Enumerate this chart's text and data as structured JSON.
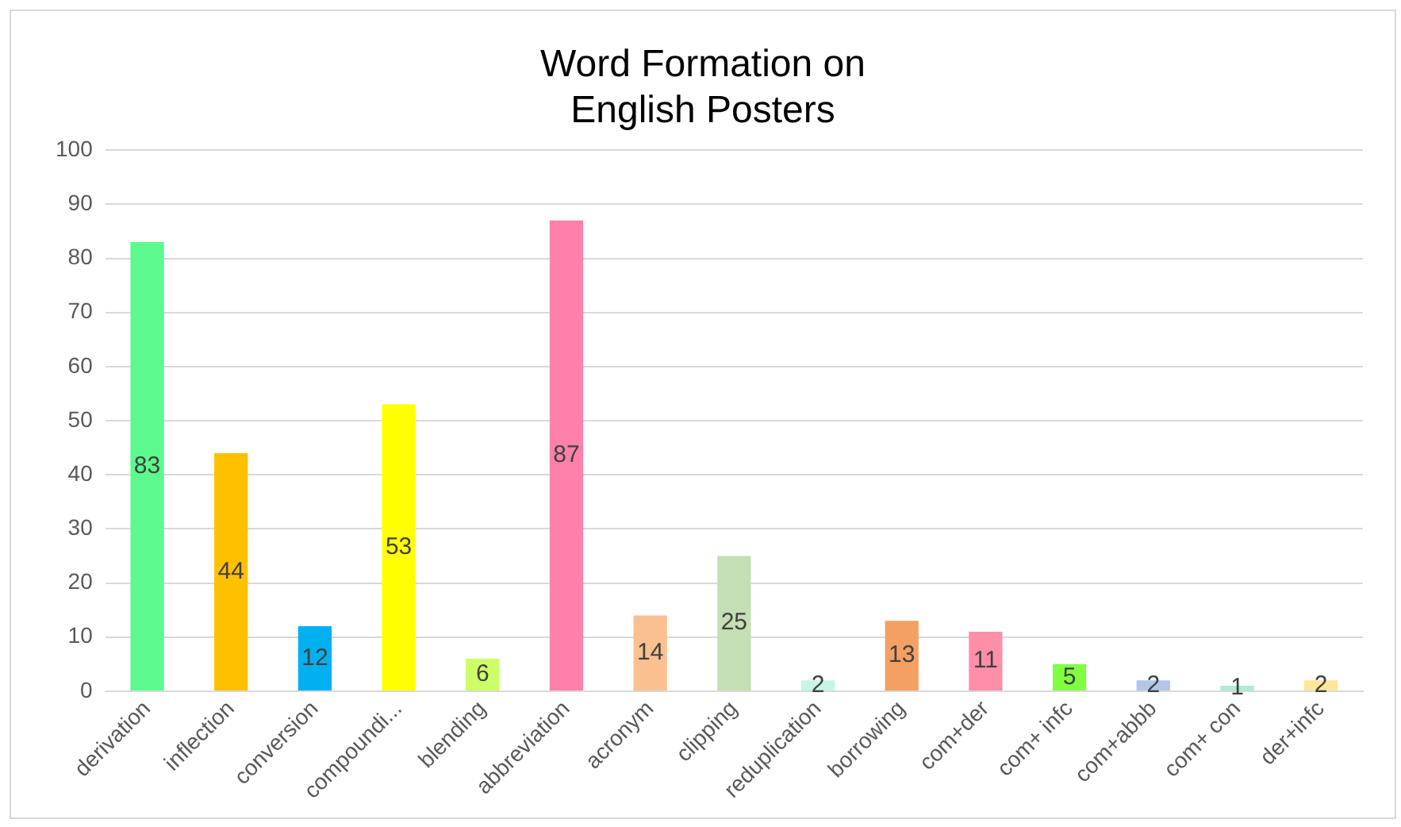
{
  "chart_data": {
    "type": "bar",
    "title": "Word Formation on\nEnglish Posters",
    "categories": [
      "derivation",
      "inflection",
      "conversion",
      "compoundi...",
      "blending",
      "abbreviation",
      "acronym",
      "clipping",
      "reduplication",
      "borrowing",
      "com+der",
      "com+ infc",
      "com+abbb",
      "com+ con",
      "der+infc"
    ],
    "values": [
      83,
      44,
      12,
      53,
      6,
      87,
      14,
      25,
      2,
      13,
      11,
      5,
      2,
      1,
      2
    ],
    "colors": [
      "#5cfa8c",
      "#ffc000",
      "#00b0f0",
      "#ffff00",
      "#ccff66",
      "#ff80aa",
      "#fac090",
      "#c4dfb3",
      "#c6f5e8",
      "#f4a064",
      "#ff8fa8",
      "#80ff40",
      "#b4c6e7",
      "#a8f0d0",
      "#ffe699"
    ],
    "ylim": [
      0,
      100
    ],
    "yticks": [
      0,
      10,
      20,
      30,
      40,
      50,
      60,
      70,
      80,
      90,
      100
    ],
    "grid": "y",
    "data_labels": true,
    "legend": false
  }
}
